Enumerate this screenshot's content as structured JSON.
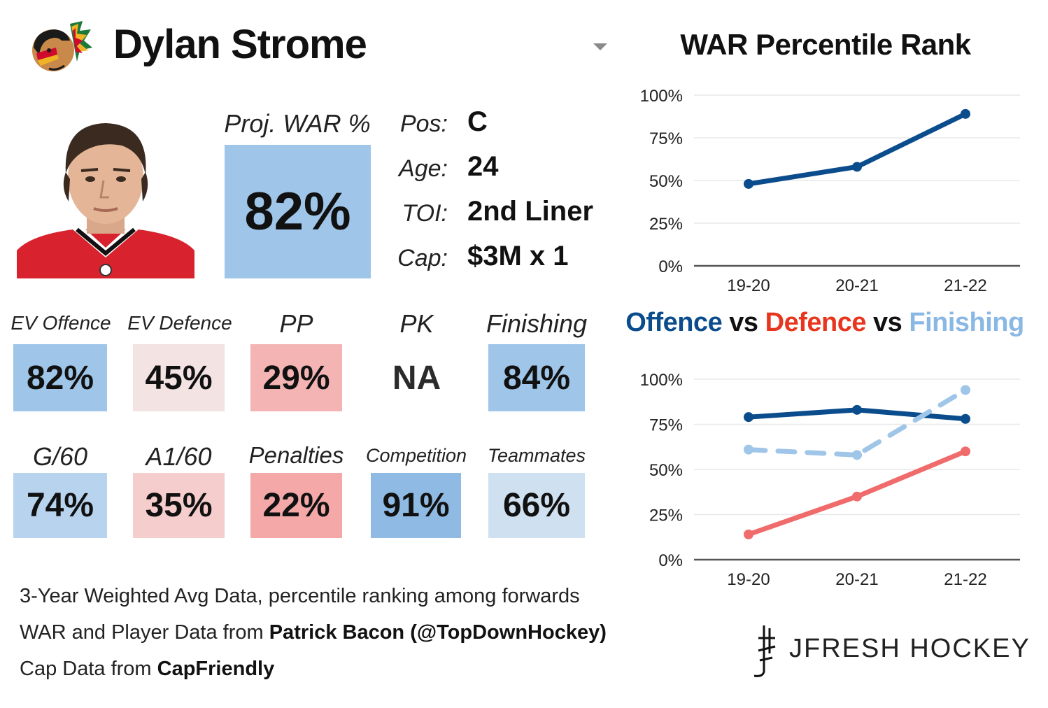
{
  "player": {
    "name": "Dylan Strome",
    "proj_war_label": "Proj. WAR %",
    "proj_war_value": "82%",
    "proj_war_color": "#9fc5e8"
  },
  "info": [
    {
      "label": "Pos:",
      "value": "C"
    },
    {
      "label": "Age:",
      "value": "24"
    },
    {
      "label": "TOI:",
      "value": "2nd Liner"
    },
    {
      "label": "Cap:",
      "value": "$3M x 1"
    }
  ],
  "tiles": [
    {
      "label": "EV Offence",
      "value": "82%",
      "color": "#9fc5e8"
    },
    {
      "label": "EV Defence",
      "value": "45%",
      "color": "#f3e3e3"
    },
    {
      "label": "PP",
      "value": "29%",
      "color": "#f4b4b4"
    },
    {
      "label": "PK",
      "value": "NA",
      "color": "#ffffff"
    },
    {
      "label": "Finishing",
      "value": "84%",
      "color": "#9fc5e8"
    },
    {
      "label": "G/60",
      "value": "74%",
      "color": "#b7d3ee"
    },
    {
      "label": "A1/60",
      "value": "35%",
      "color": "#f6cdcd"
    },
    {
      "label": "Penalties",
      "value": "22%",
      "color": "#f4a8a8"
    },
    {
      "label": "Competition",
      "value": "91%",
      "color": "#8fbae3"
    },
    {
      "label": "Teammates",
      "value": "66%",
      "color": "#cfe0f1"
    }
  ],
  "footer": {
    "line1": "3-Year Weighted Avg Data, percentile ranking among forwards",
    "line2_prefix": "WAR and Player Data from ",
    "line2_bold": "Patrick Bacon (@TopDownHockey)",
    "line3_prefix": "Cap Data from ",
    "line3_bold": "CapFriendly"
  },
  "brand": "JFRESH HOCKEY",
  "colors": {
    "offence": "#0b4d8c",
    "defence": "#f06b6b",
    "finishing": "#9fc5e8",
    "vs": "#111111",
    "title_defence": "#e8361e",
    "title_finishing": "#8ab8e4"
  },
  "chart_data": [
    {
      "type": "line",
      "title": "WAR Percentile Rank",
      "x": [
        "19-20",
        "20-21",
        "21-22"
      ],
      "series": [
        {
          "values": [
            48,
            58,
            89
          ]
        }
      ],
      "ylim": [
        0,
        100
      ],
      "yticks": [
        "0%",
        "25%",
        "50%",
        "75%",
        "100%"
      ],
      "grid": true
    },
    {
      "type": "line",
      "title_parts": [
        "Offence",
        " vs ",
        "Defence",
        " vs ",
        "Finishing"
      ],
      "x": [
        "19-20",
        "20-21",
        "21-22"
      ],
      "series": [
        {
          "values": [
            79,
            83,
            78
          ],
          "style": "solid"
        },
        {
          "values": [
            14,
            35,
            60
          ],
          "style": "solid"
        },
        {
          "values": [
            61,
            58,
            94
          ],
          "style": "dashed"
        }
      ],
      "ylim": [
        0,
        100
      ],
      "yticks": [
        "0%",
        "25%",
        "50%",
        "75%",
        "100%"
      ],
      "grid": true
    }
  ]
}
